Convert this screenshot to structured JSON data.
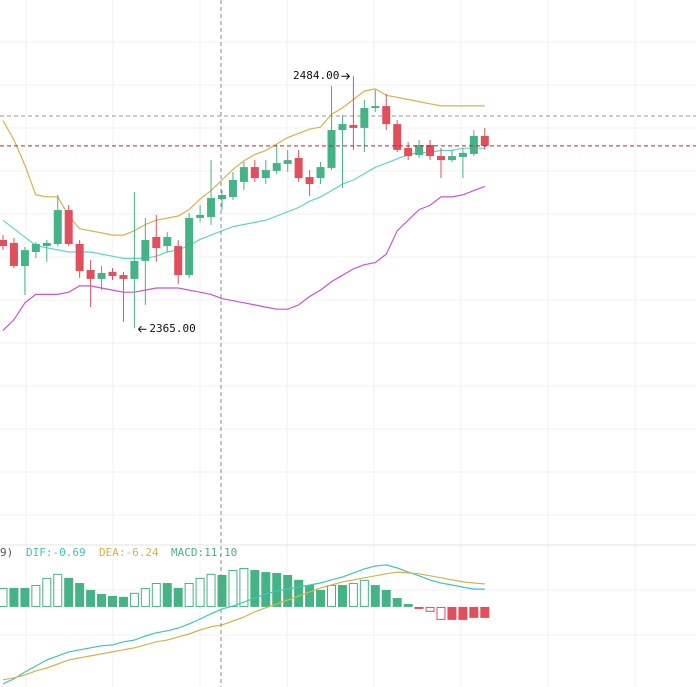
{
  "chart_data": {
    "type": "candlestick",
    "ylim": [
      2265,
      2520
    ],
    "open": [
      2406.7,
      2405.3,
      2394.4,
      2401.0,
      2403.8,
      2404.8,
      2420.8,
      2404.8,
      2392.5,
      2388.3,
      2391.6,
      2390.1,
      2388.3,
      2396.8,
      2408.1,
      2403.8,
      2403.8,
      2390.1,
      2417.1,
      2417.5,
      2426.0,
      2427.0,
      2434.1,
      2441.1,
      2435.9,
      2439.3,
      2442.6,
      2445.4,
      2436.4,
      2435.9,
      2440.7,
      2458.6,
      2461.0,
      2459.6,
      2469.0,
      2469.9,
      2461.4,
      2450.1,
      2446.8,
      2451.5,
      2446.3,
      2444.4,
      2445.9,
      2447.3,
      2455.8
    ],
    "high": [
      2409.0,
      2407.6,
      2403.4,
      2405.7,
      2406.7,
      2427.9,
      2423.2,
      2406.7,
      2397.2,
      2394.4,
      2393.4,
      2391.6,
      2429.3,
      2417.1,
      2418.5,
      2410.4,
      2406.7,
      2419.4,
      2423.2,
      2444.4,
      2430.3,
      2438.8,
      2443.5,
      2444.4,
      2444.4,
      2451.5,
      2449.2,
      2449.2,
      2439.7,
      2443.5,
      2479.4,
      2465.7,
      2484.0,
      2472.8,
      2477.5,
      2475.6,
      2463.3,
      2452.9,
      2453.9,
      2453.9,
      2450.1,
      2449.2,
      2450.1,
      2458.6,
      2459.6
    ],
    "low": [
      2401.9,
      2393.4,
      2380.7,
      2398.2,
      2396.3,
      2403.8,
      2403.8,
      2388.7,
      2375.0,
      2383.1,
      2387.8,
      2368.0,
      2365.0,
      2376.0,
      2396.3,
      2401.0,
      2385.9,
      2388.7,
      2415.2,
      2413.8,
      2420.8,
      2425.6,
      2430.3,
      2434.1,
      2433.1,
      2437.8,
      2438.8,
      2434.1,
      2427.4,
      2433.1,
      2439.7,
      2431.2,
      2449.2,
      2448.2,
      2467.1,
      2458.6,
      2448.2,
      2444.4,
      2445.4,
      2444.4,
      2435.9,
      2443.5,
      2435.9,
      2446.3,
      2449.2
    ],
    "close": [
      2403.8,
      2394.4,
      2401.9,
      2404.8,
      2405.3,
      2420.8,
      2404.8,
      2392.0,
      2388.3,
      2391.1,
      2389.7,
      2388.3,
      2396.8,
      2406.7,
      2402.9,
      2408.1,
      2390.1,
      2417.1,
      2418.5,
      2426.5,
      2427.9,
      2435.0,
      2441.1,
      2435.9,
      2439.7,
      2443.0,
      2444.4,
      2435.9,
      2433.1,
      2441.1,
      2458.6,
      2461.4,
      2459.6,
      2469.0,
      2469.9,
      2461.4,
      2449.2,
      2446.3,
      2451.5,
      2446.3,
      2444.4,
      2446.3,
      2447.8,
      2455.8,
      2451.1
    ],
    "up_color": "#45b386",
    "down_color": "#e0505c",
    "high_label": "2484.00",
    "low_label": "2365.00",
    "series": [
      {
        "color": "#d4b44c",
        "values": [
          2463,
          2454,
          2442,
          2428,
          2427,
          2427,
          2418,
          2412,
          2411,
          2410,
          2409,
          2409,
          2411,
          2414,
          2416,
          2417,
          2418,
          2421,
          2426,
          2430,
          2435,
          2440,
          2444,
          2447,
          2449,
          2452,
          2455,
          2457,
          2459,
          2460,
          2466,
          2469,
          2473,
          2477,
          2478,
          2475,
          2474,
          2473,
          2472,
          2471,
          2470,
          2470,
          2470,
          2470,
          2470
        ]
      },
      {
        "color": "#5fd6c4",
        "values": [
          2416,
          2412,
          2408,
          2404,
          2403,
          2402,
          2401,
          2401,
          2401,
          2400,
          2399,
          2398,
          2398,
          2398,
          2399,
          2401,
          2402,
          2404,
          2407,
          2409,
          2411,
          2413,
          2414,
          2415,
          2416,
          2418,
          2420,
          2422,
          2425,
          2427,
          2430,
          2433,
          2435,
          2438,
          2441,
          2443,
          2445,
          2447,
          2448,
          2448,
          2449,
          2449,
          2450,
          2450,
          2450
        ]
      },
      {
        "color": "#d052d0",
        "values": [
          2364,
          2369,
          2377,
          2381,
          2381,
          2381,
          2382,
          2385,
          2385,
          2384,
          2383,
          2382,
          2382,
          2383,
          2384,
          2384,
          2384,
          2383,
          2382,
          2381,
          2379,
          2378,
          2377,
          2376,
          2375,
          2374,
          2374,
          2376,
          2380,
          2383,
          2387,
          2390,
          2393,
          2395,
          2396,
          2400,
          2411,
          2416,
          2421,
          2423,
          2427,
          2427,
          2428,
          2430,
          2432
        ]
      }
    ],
    "indicator": {
      "label": "9)",
      "ylim": [
        -27.8,
        21.5
      ],
      "lines": [
        {
          "label": "DIF:-0.69",
          "color": "#3ec7b6",
          "values": [
            -26.7,
            -25.0,
            -22.6,
            -20.5,
            -18.4,
            -17.0,
            -15.6,
            -14.9,
            -14.2,
            -13.5,
            -13.2,
            -12.1,
            -11.5,
            -10.1,
            -9.0,
            -8.3,
            -7.3,
            -5.9,
            -4.2,
            -2.4,
            -0.69,
            0.3,
            1.7,
            3.1,
            4.5,
            5.6,
            6.2,
            6.9,
            7.6,
            8.3,
            9.4,
            10.4,
            11.8,
            13.2,
            14.2,
            14.6,
            13.5,
            12.1,
            10.8,
            9.4,
            8.3,
            7.6,
            6.9,
            6.2,
            6.2
          ]
        },
        {
          "label": "DEA:-6.24",
          "color": "#d4b44c",
          "values": [
            -25.3,
            -24.6,
            -23.6,
            -22.2,
            -21.2,
            -19.8,
            -18.4,
            -17.7,
            -17.0,
            -16.3,
            -15.6,
            -14.9,
            -14.2,
            -13.2,
            -12.1,
            -11.5,
            -10.4,
            -9.4,
            -8.0,
            -6.9,
            -6.24,
            -4.9,
            -3.5,
            -1.7,
            -0.3,
            1.0,
            2.4,
            3.8,
            5.2,
            6.6,
            7.6,
            8.7,
            9.4,
            10.1,
            10.8,
            11.5,
            12.1,
            11.8,
            11.5,
            10.8,
            10.1,
            9.4,
            8.7,
            8.3,
            8.0
          ]
        }
      ],
      "histogram": {
        "label": "MACD:11.10",
        "color": "#45b386",
        "values": [
          6.6,
          6.6,
          6.6,
          7.6,
          10.1,
          11.5,
          10.1,
          8.3,
          5.9,
          4.5,
          3.8,
          3.5,
          4.9,
          6.6,
          8.3,
          8.3,
          6.6,
          8.3,
          10.1,
          11.5,
          11.1,
          12.8,
          13.5,
          12.8,
          12.1,
          11.8,
          11.1,
          9.4,
          7.6,
          5.9,
          7.6,
          7.6,
          8.3,
          9.4,
          7.6,
          5.9,
          3.1,
          1.0,
          -0.7,
          -1.7,
          -4.5,
          -4.5,
          -4.5,
          -3.8,
          -3.8
        ]
      }
    }
  }
}
